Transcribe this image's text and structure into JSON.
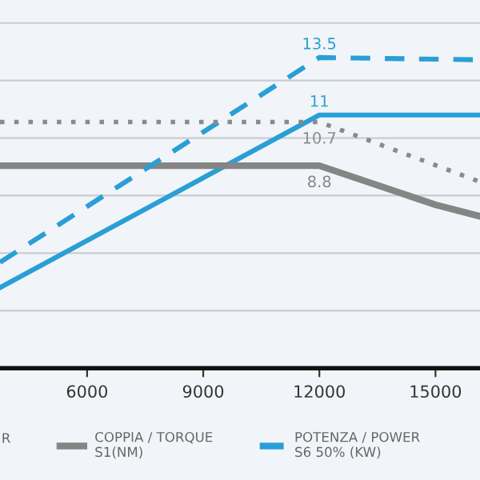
{
  "chart_data": {
    "type": "line",
    "x": [
      3750,
      12000,
      16150
    ],
    "xlim": [
      3750,
      16150
    ],
    "xticks": [
      6000,
      9000,
      12000,
      15000
    ],
    "ylim": [
      0,
      16
    ],
    "yticks": [
      {
        "value": 2.5,
        "label": null
      },
      {
        "value": 5,
        "label": null
      },
      {
        "value": 7.5,
        "label": null
      },
      {
        "value": 10,
        "label": null
      },
      {
        "value": 12.5,
        "label": null
      },
      {
        "value": 15,
        "label": null
      }
    ],
    "tick_labels": "x",
    "grid": "y",
    "legend": "bottom",
    "marker": "none",
    "series": [
      {
        "color": "#2a9fd6",
        "line_style": "solid",
        "values": [
          3.5,
          11,
          11
        ],
        "value_labels": [
          null,
          "11",
          null
        ]
      },
      {
        "name": "COPPIA / TORQUE\nS1(NM)",
        "color": "#858585",
        "line_style": "solid",
        "x": [
          3750,
          12000,
          15000,
          16150
        ],
        "values": [
          8.8,
          8.8,
          7.1,
          6.6
        ],
        "value_labels": [
          null,
          "8.8",
          null,
          null
        ]
      },
      {
        "name": "POTENZA / POWER\nS6 50% (KW)",
        "color": "#2a9fd6",
        "line_style": "dashed",
        "values": [
          4.6,
          13.5,
          13.4
        ],
        "value_labels": [
          null,
          "13.5",
          null
        ]
      },
      {
        "color": "#8a8a8a",
        "line_style": "dotted",
        "x": [
          3750,
          12000,
          16150
        ],
        "values": [
          10.7,
          10.7,
          8.1
        ],
        "value_labels": [
          null,
          "10.7",
          null
        ]
      }
    ],
    "annotations": [
      "R"
    ]
  }
}
